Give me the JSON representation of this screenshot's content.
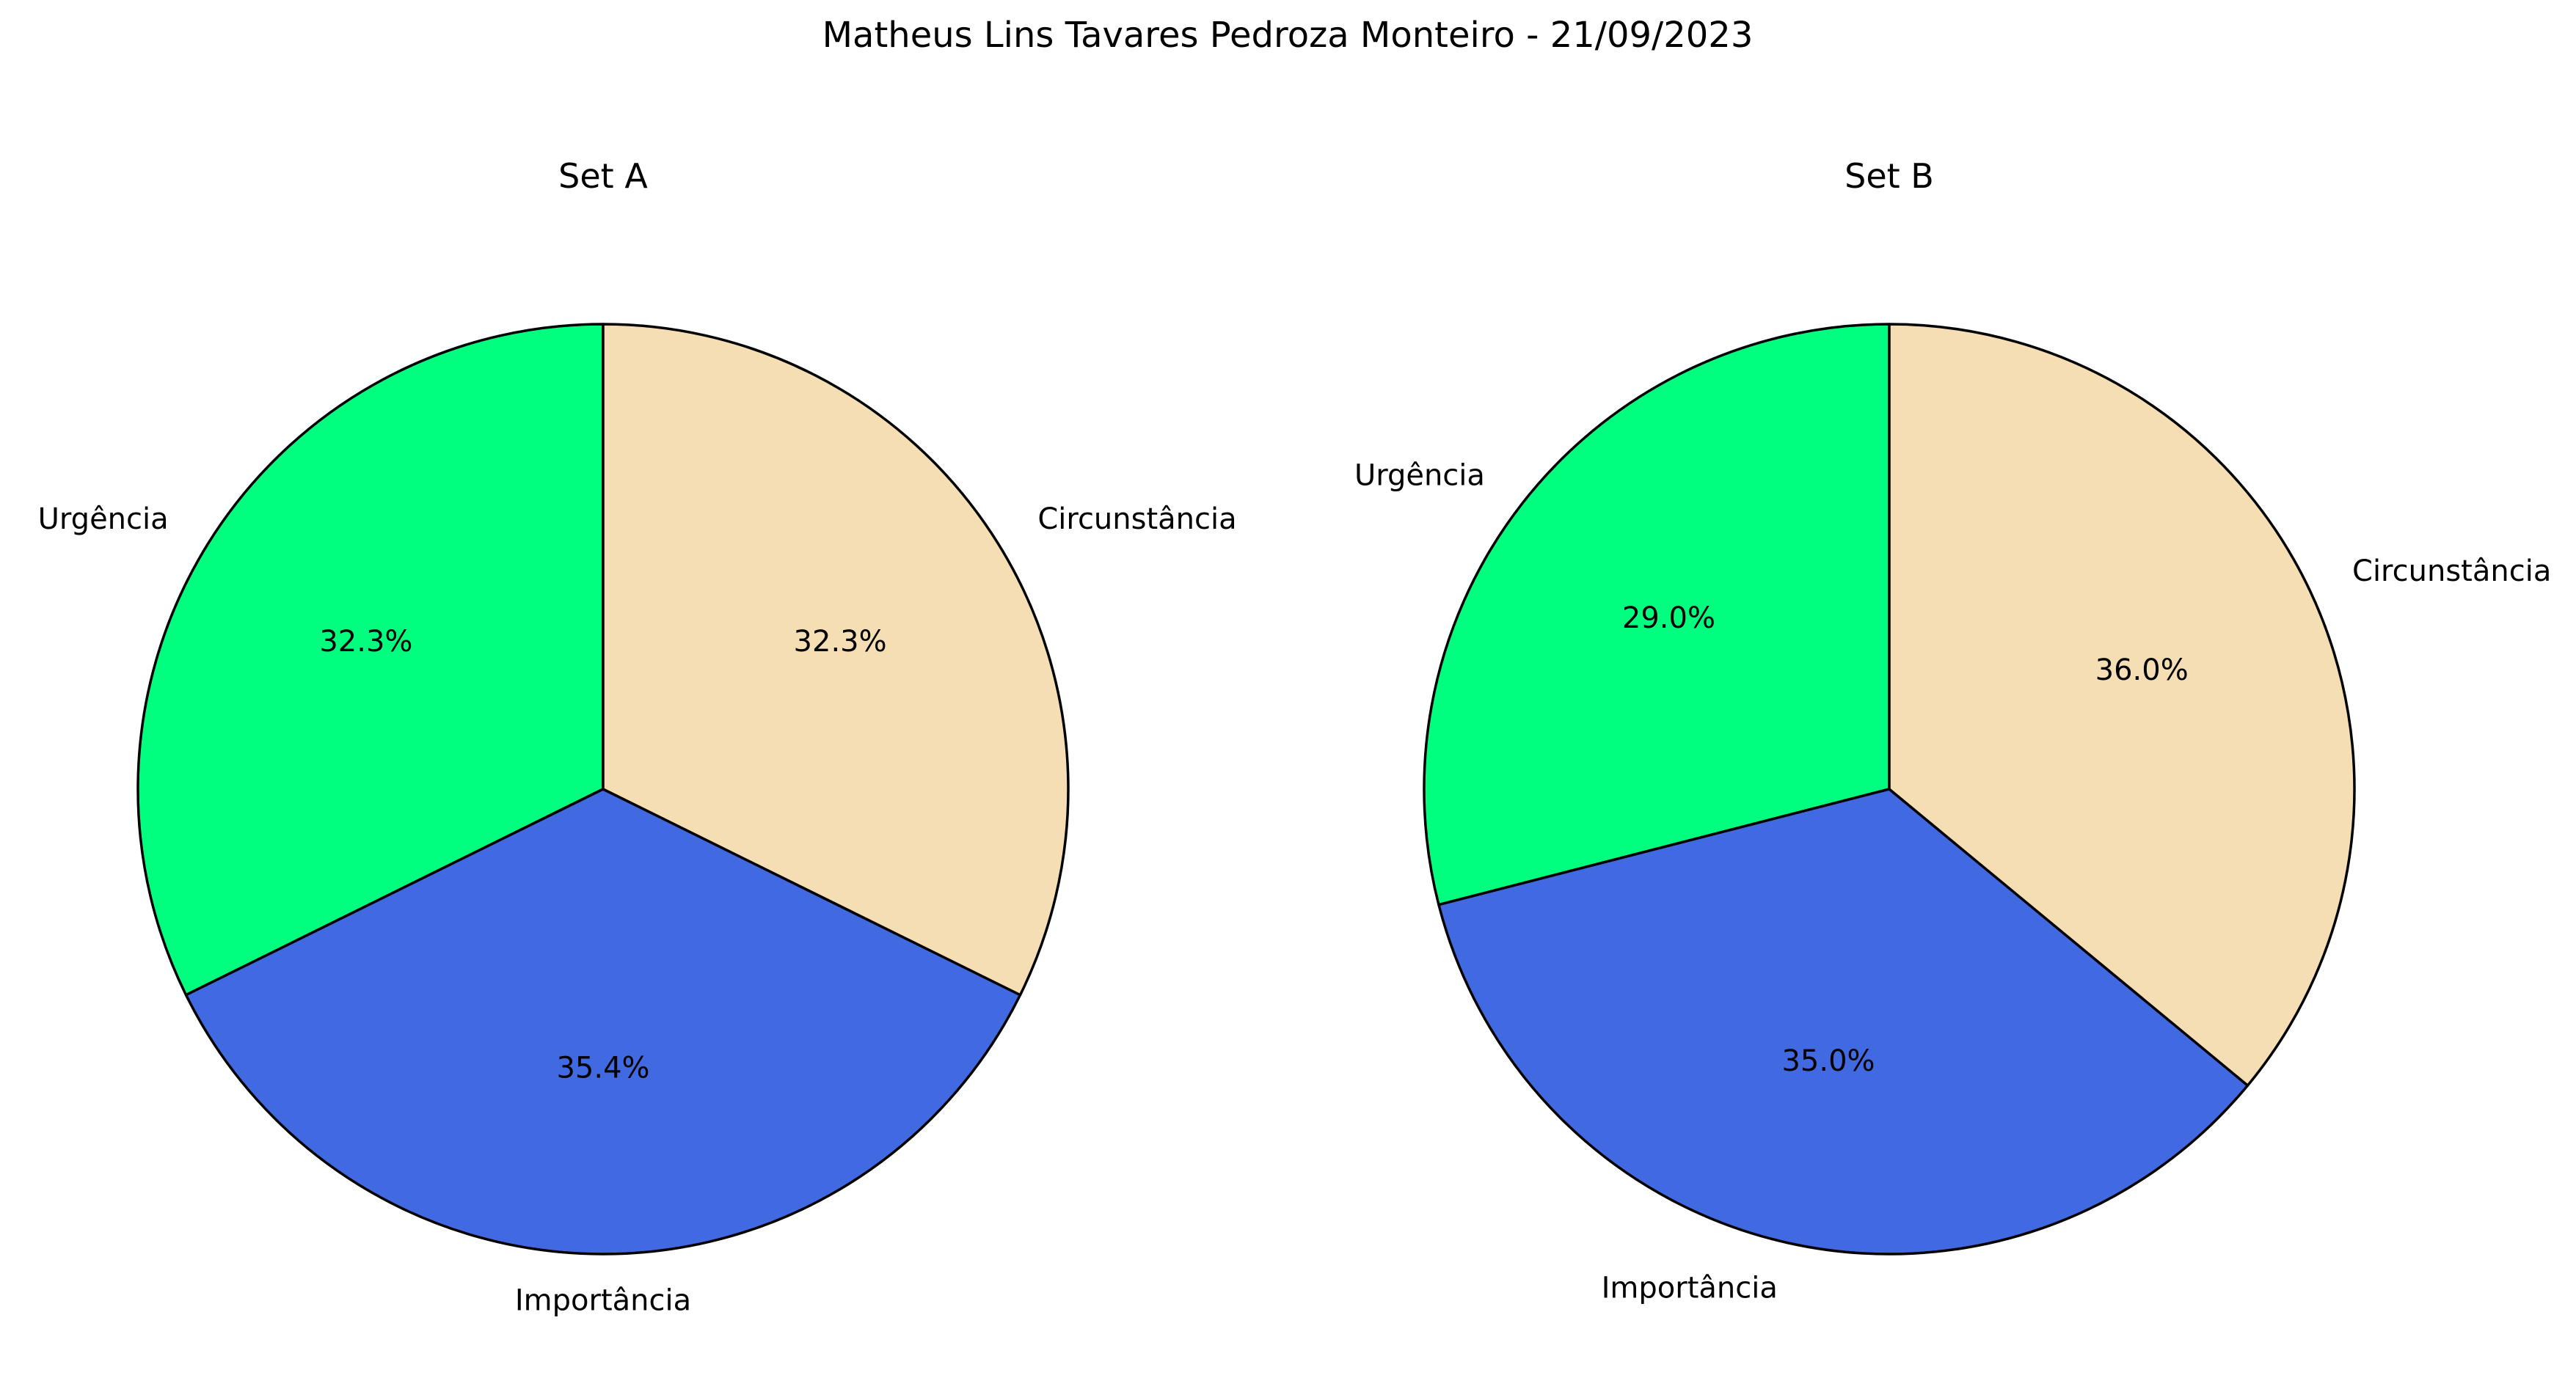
{
  "figure": {
    "suptitle": "Matheus Lins Tavares Pedroza Monteiro - 21/09/2023"
  },
  "chart_data": [
    {
      "type": "pie",
      "title": "Set A",
      "labels": [
        "Urgência",
        "Importância",
        "Circunstância"
      ],
      "values": [
        32.3,
        35.4,
        32.3
      ],
      "pct_labels": [
        "32.3%",
        "35.4%",
        "32.3%"
      ],
      "colors": [
        "#00ff7f",
        "#4169e1",
        "#f5deb3"
      ],
      "start_angle_deg": 90,
      "direction": "counterclockwise",
      "edge_color": "#000000"
    },
    {
      "type": "pie",
      "title": "Set B",
      "labels": [
        "Urgência",
        "Importância",
        "Circunstância"
      ],
      "values": [
        29.0,
        35.0,
        36.0
      ],
      "pct_labels": [
        "29.0%",
        "35.0%",
        "36.0%"
      ],
      "colors": [
        "#00ff7f",
        "#4169e1",
        "#f5deb3"
      ],
      "start_angle_deg": 90,
      "direction": "counterclockwise",
      "edge_color": "#000000"
    }
  ]
}
